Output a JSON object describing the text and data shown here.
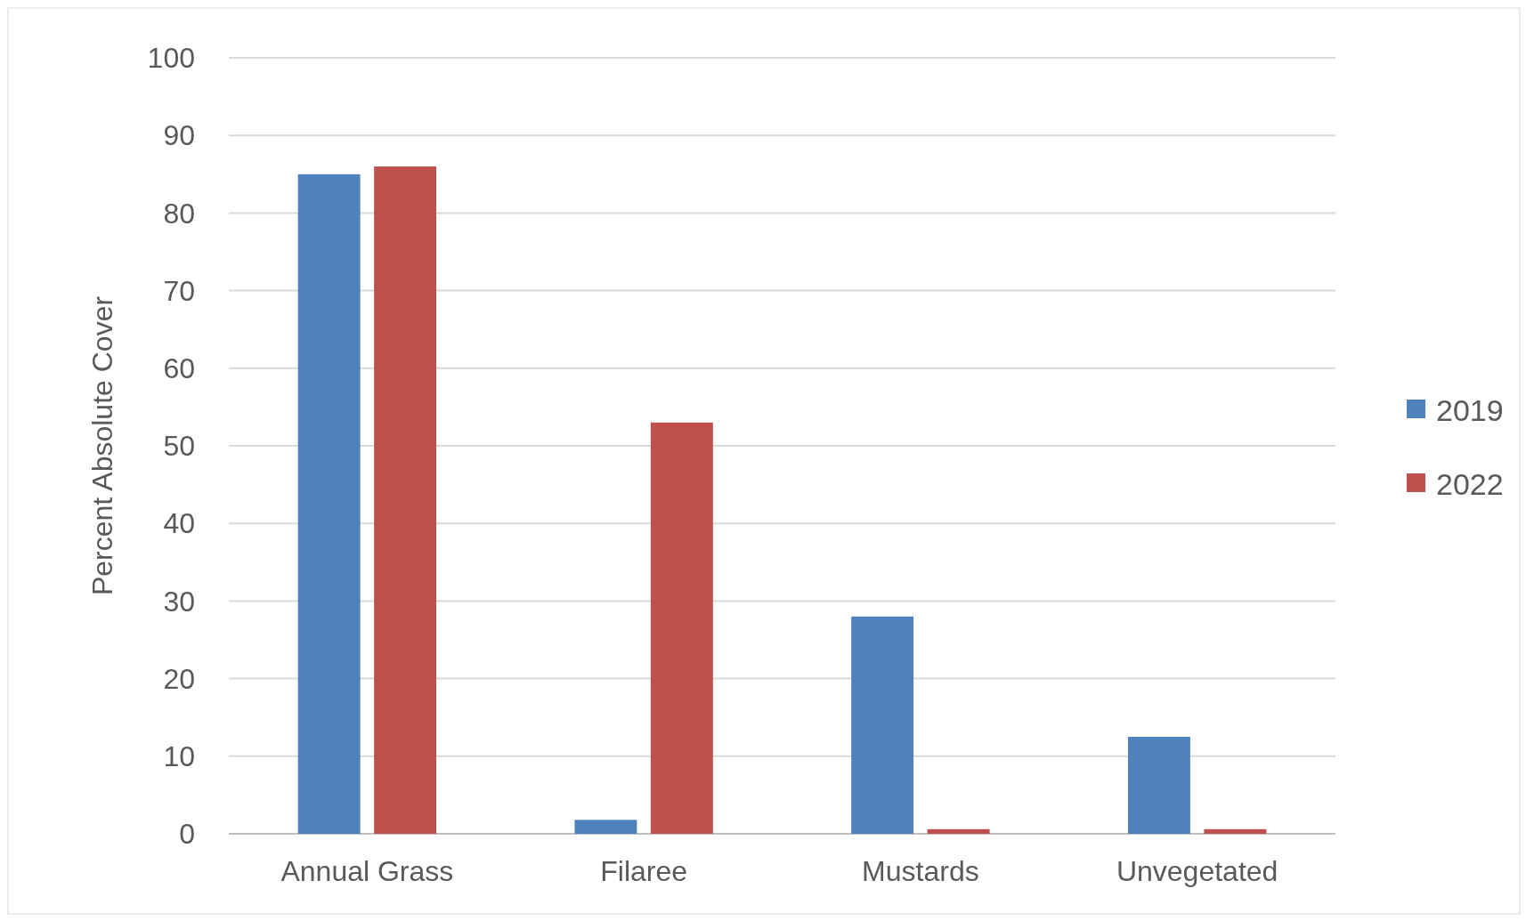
{
  "chart_data": {
    "type": "bar",
    "ylabel": "Percent Absolute Cover",
    "categories": [
      "Annual Grass",
      "Filaree",
      "Mustards",
      "Unvegetated"
    ],
    "series": [
      {
        "name": "2019",
        "color": "#4f81bd",
        "values": [
          85,
          1.8,
          28,
          12.5
        ]
      },
      {
        "name": "2022",
        "color": "#c0504d",
        "values": [
          86,
          53,
          0.6,
          0.6
        ]
      }
    ],
    "ylim": [
      0,
      100
    ],
    "yticks": [
      0,
      10,
      20,
      30,
      40,
      50,
      60,
      70,
      80,
      90,
      100
    ],
    "grid": "y",
    "legend": "right"
  }
}
